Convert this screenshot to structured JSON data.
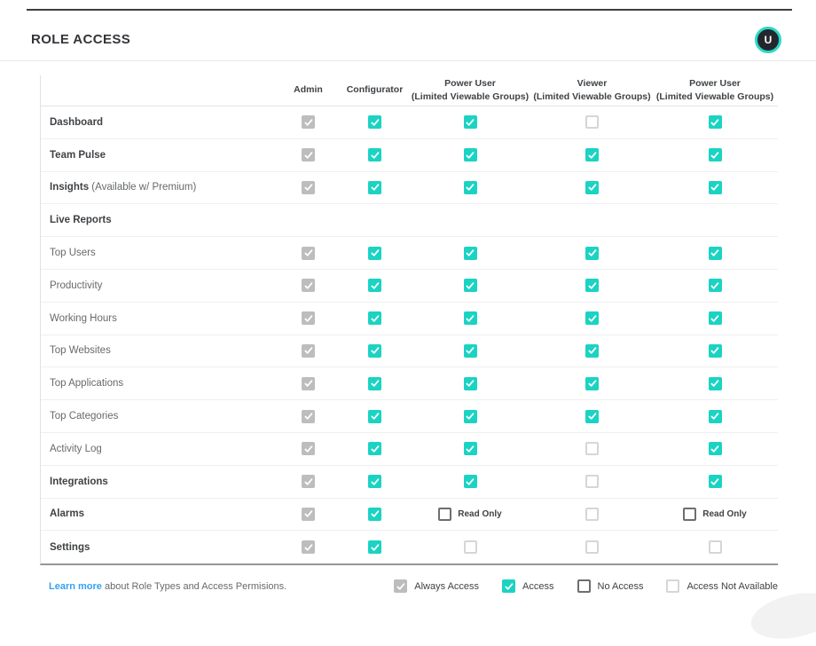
{
  "page": {
    "title": "ROLE ACCESS"
  },
  "avatar": {
    "initial": "U"
  },
  "colors": {
    "accent_teal": "#1bd3c3",
    "always_gray": "#bdbdbd",
    "no_access_border": "#6e6e6e",
    "not_available_border": "#d6d6d6",
    "link_blue": "#35a0f2",
    "avatar_ring": "#2ad8c8",
    "avatar_bg": "#24262e"
  },
  "table": {
    "columns": [
      {
        "label": "Admin",
        "sub": ""
      },
      {
        "label": "Configurator",
        "sub": ""
      },
      {
        "label": "Power User",
        "sub": "(Limited Viewable Groups)"
      },
      {
        "label": "Viewer",
        "sub": "(Limited Viewable Groups)"
      },
      {
        "label": "Power User",
        "sub": "(Limited Viewable Groups)"
      }
    ],
    "readonly_label": "Read Only",
    "rows": [
      {
        "label": "Dashboard",
        "suffix": "",
        "bold": true,
        "cells": [
          "always",
          "access",
          "access",
          "na",
          "access"
        ]
      },
      {
        "label": "Team Pulse",
        "suffix": "",
        "bold": true,
        "cells": [
          "always",
          "access",
          "access",
          "access",
          "access"
        ]
      },
      {
        "label": "Insights",
        "suffix": " (Available w/ Premium)",
        "bold": true,
        "cells": [
          "always",
          "access",
          "access",
          "access",
          "access"
        ]
      },
      {
        "label": "Live Reports",
        "suffix": "",
        "bold": true,
        "cells": []
      },
      {
        "label": "Top Users",
        "suffix": "",
        "bold": false,
        "cells": [
          "always",
          "access",
          "access",
          "access",
          "access"
        ]
      },
      {
        "label": "Productivity",
        "suffix": "",
        "bold": false,
        "cells": [
          "always",
          "access",
          "access",
          "access",
          "access"
        ]
      },
      {
        "label": "Working Hours",
        "suffix": "",
        "bold": false,
        "cells": [
          "always",
          "access",
          "access",
          "access",
          "access"
        ]
      },
      {
        "label": "Top Websites",
        "suffix": "",
        "bold": false,
        "cells": [
          "always",
          "access",
          "access",
          "access",
          "access"
        ]
      },
      {
        "label": "Top Applications",
        "suffix": "",
        "bold": false,
        "cells": [
          "always",
          "access",
          "access",
          "access",
          "access"
        ]
      },
      {
        "label": "Top Categories",
        "suffix": "",
        "bold": false,
        "cells": [
          "always",
          "access",
          "access",
          "access",
          "access"
        ]
      },
      {
        "label": "Activity Log",
        "suffix": "",
        "bold": false,
        "cells": [
          "always",
          "access",
          "access",
          "na",
          "access"
        ]
      },
      {
        "label": "Integrations",
        "suffix": "",
        "bold": true,
        "cells": [
          "always",
          "access",
          "access",
          "na",
          "access"
        ]
      },
      {
        "label": "Alarms",
        "suffix": "",
        "bold": true,
        "cells": [
          "always",
          "access",
          "readonly",
          "na",
          "readonly"
        ]
      },
      {
        "label": "Settings",
        "suffix": "",
        "bold": true,
        "cells": [
          "always",
          "access",
          "na",
          "na",
          "na"
        ]
      }
    ]
  },
  "footer": {
    "link": "Learn more",
    "text": " about Role Types and Access Permisions.",
    "legend": [
      {
        "type": "always",
        "label": "Always Access"
      },
      {
        "type": "access",
        "label": "Access"
      },
      {
        "type": "no",
        "label": "No Access"
      },
      {
        "type": "na",
        "label": "Access Not Available"
      }
    ]
  }
}
